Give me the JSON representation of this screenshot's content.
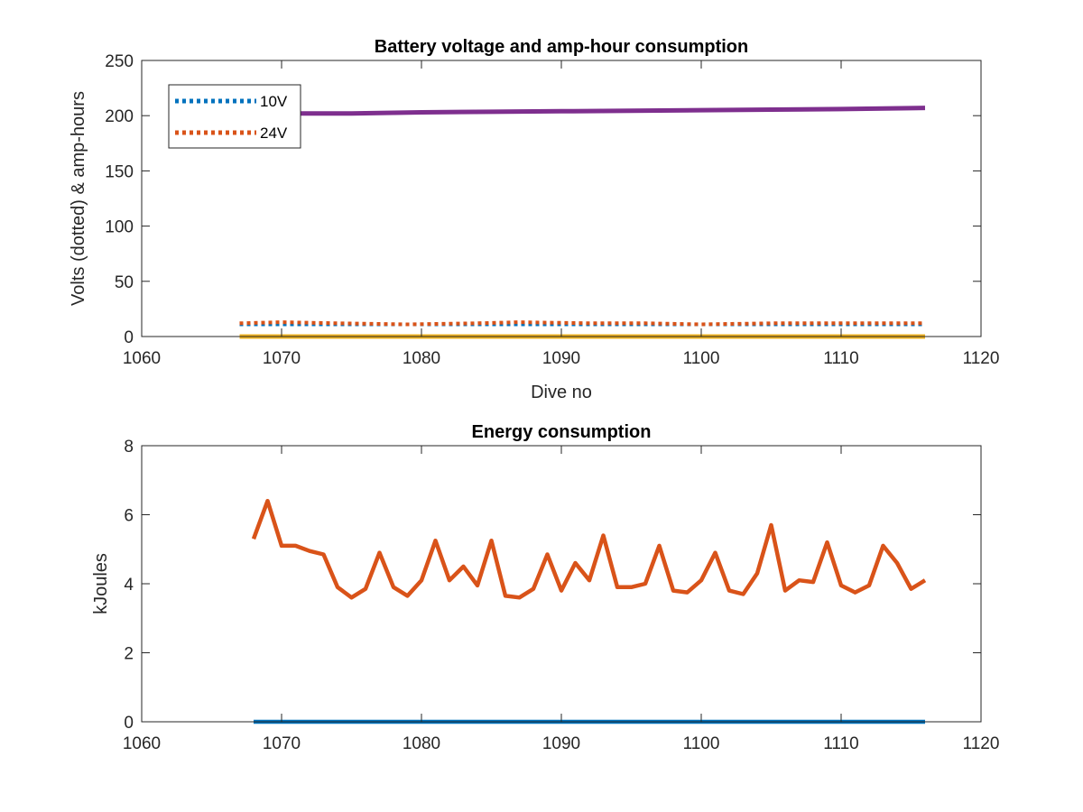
{
  "chart_data": [
    {
      "type": "line",
      "title": "Battery voltage and amp-hour consumption",
      "xlabel": "Dive no",
      "ylabel": "Volts (dotted) & amp-hours",
      "xlim": [
        1060,
        1120
      ],
      "ylim": [
        0,
        250
      ],
      "x_ticks": [
        1060,
        1070,
        1080,
        1090,
        1100,
        1110,
        1120
      ],
      "y_ticks": [
        0,
        50,
        100,
        150,
        200,
        250
      ],
      "x_tick_labels": [
        "1060",
        "1070",
        "1080",
        "1090",
        "1100",
        "1110",
        "1120"
      ],
      "y_tick_labels": [
        "0",
        "50",
        "100",
        "150",
        "200",
        "250"
      ],
      "legend_position": "top-left",
      "grid": false,
      "series": [
        {
          "name": "10V",
          "style": "dotted",
          "color": "#0072BD",
          "x": [
            1067,
            1116
          ],
          "y": [
            11,
            11
          ]
        },
        {
          "name": "24V",
          "style": "dotted",
          "color": "#D95319",
          "x": [
            1067,
            1070,
            1074,
            1079,
            1084,
            1087,
            1092,
            1096,
            1100,
            1105,
            1110,
            1116
          ],
          "y": [
            12,
            13,
            12,
            11,
            12,
            13,
            12,
            12,
            11,
            12,
            12,
            12
          ]
        },
        {
          "style": "solid",
          "color": "#EDB120",
          "x": [
            1067,
            1116
          ],
          "y": [
            0,
            0
          ]
        },
        {
          "style": "solid",
          "color": "#7E2F8E",
          "x": [
            1067,
            1070,
            1075,
            1080,
            1085,
            1090,
            1095,
            1100,
            1105,
            1110,
            1116
          ],
          "y": [
            201,
            202,
            202,
            203,
            203.5,
            204,
            204.5,
            205,
            205.5,
            206,
            207
          ]
        }
      ],
      "legend_entries": [
        "10V",
        "24V"
      ]
    },
    {
      "type": "line",
      "title": "Energy consumption",
      "xlabel": "",
      "ylabel": "kJoules",
      "xlim": [
        1060,
        1120
      ],
      "ylim": [
        0,
        8
      ],
      "x_ticks": [
        1060,
        1070,
        1080,
        1090,
        1100,
        1110,
        1120
      ],
      "y_ticks": [
        0,
        2,
        4,
        6,
        8
      ],
      "x_tick_labels": [
        "1060",
        "1070",
        "1080",
        "1090",
        "1100",
        "1110",
        "1120"
      ],
      "y_tick_labels": [
        "0",
        "2",
        "4",
        "6",
        "8"
      ],
      "grid": false,
      "series": [
        {
          "style": "solid",
          "color": "#0072BD",
          "x": [
            1068,
            1116
          ],
          "y": [
            0,
            0
          ]
        },
        {
          "style": "solid",
          "color": "#D95319",
          "x": [
            1068,
            1069,
            1070,
            1071,
            1072,
            1073,
            1074,
            1075,
            1076,
            1077,
            1078,
            1079,
            1080,
            1081,
            1082,
            1083,
            1084,
            1085,
            1086,
            1087,
            1088,
            1089,
            1090,
            1091,
            1092,
            1093,
            1094,
            1095,
            1096,
            1097,
            1098,
            1099,
            1100,
            1101,
            1102,
            1103,
            1104,
            1105,
            1106,
            1107,
            1108,
            1109,
            1110,
            1111,
            1112,
            1113,
            1114,
            1115,
            1116
          ],
          "y": [
            5.3,
            6.4,
            5.1,
            5.1,
            4.95,
            4.85,
            3.9,
            3.6,
            3.85,
            4.9,
            3.9,
            3.65,
            4.1,
            5.25,
            4.1,
            4.5,
            3.95,
            5.25,
            3.65,
            3.6,
            3.85,
            4.85,
            3.8,
            4.6,
            4.1,
            5.4,
            3.9,
            3.9,
            4.0,
            5.1,
            3.8,
            3.75,
            4.1,
            4.9,
            3.8,
            3.7,
            4.3,
            5.7,
            3.8,
            4.1,
            4.05,
            5.2,
            3.95,
            3.75,
            3.95,
            5.1,
            4.6,
            3.85,
            4.1
          ]
        }
      ]
    }
  ]
}
